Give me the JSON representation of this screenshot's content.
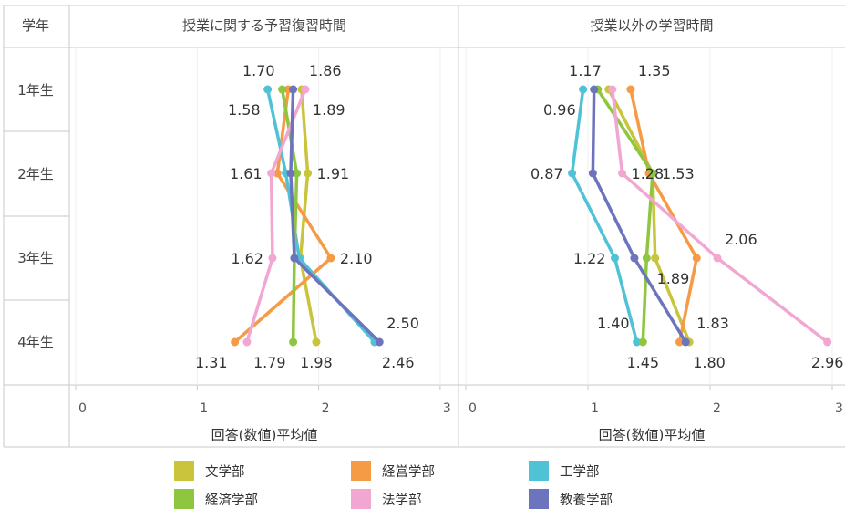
{
  "table": {
    "corner_label": "学年",
    "row_labels": [
      "1年生",
      "2年生",
      "3年生",
      "4年生"
    ]
  },
  "chart_data": [
    {
      "type": "line",
      "title": "授業に関する予習復習時間",
      "xlabel": "回答(数値)平均値",
      "xlim": [
        0,
        3
      ],
      "x_ticks": [
        "0",
        "1",
        "2",
        "3"
      ],
      "categories": [
        "1年生",
        "2年生",
        "3年生",
        "4年生"
      ],
      "grid": true,
      "series": [
        {
          "name": "文学部",
          "color": "#c9c43c",
          "values": [
            1.86,
            1.91,
            1.85,
            1.98
          ]
        },
        {
          "name": "経営学部",
          "color": "#f59a45",
          "values": [
            1.75,
            1.66,
            2.1,
            1.31
          ]
        },
        {
          "name": "工学部",
          "color": "#4fc2d6",
          "values": [
            1.58,
            1.73,
            1.84,
            2.46
          ]
        },
        {
          "name": "経済学部",
          "color": "#8ec63f",
          "values": [
            1.7,
            1.82,
            1.8,
            1.79
          ]
        },
        {
          "name": "法学部",
          "color": "#f2a7d3",
          "values": [
            1.89,
            1.61,
            1.62,
            1.41
          ]
        },
        {
          "name": "教養学部",
          "color": "#6c74bd",
          "values": [
            1.79,
            1.77,
            1.8,
            2.5
          ]
        }
      ],
      "labels": [
        {
          "text": "1.70",
          "x": 1.7,
          "row": 0,
          "pos": "above-left"
        },
        {
          "text": "1.86",
          "x": 1.86,
          "row": 0,
          "pos": "above-right"
        },
        {
          "text": "1.58",
          "x": 1.58,
          "row": 0,
          "pos": "below-left"
        },
        {
          "text": "1.89",
          "x": 1.89,
          "row": 0,
          "pos": "below-right"
        },
        {
          "text": "1.61",
          "x": 1.61,
          "row": 1,
          "pos": "left"
        },
        {
          "text": "1.91",
          "x": 1.91,
          "row": 1,
          "pos": "right"
        },
        {
          "text": "1.62",
          "x": 1.62,
          "row": 2,
          "pos": "left"
        },
        {
          "text": "2.10",
          "x": 2.1,
          "row": 2,
          "pos": "right"
        },
        {
          "text": "2.50",
          "x": 2.5,
          "row": 3,
          "pos": "above-right"
        },
        {
          "text": "1.31",
          "x": 1.31,
          "row": 3,
          "pos": "below-left"
        },
        {
          "text": "1.79",
          "x": 1.79,
          "row": 3,
          "pos": "below-left"
        },
        {
          "text": "1.98",
          "x": 1.98,
          "row": 3,
          "pos": "below"
        },
        {
          "text": "2.46",
          "x": 2.46,
          "row": 3,
          "pos": "below-right"
        }
      ]
    },
    {
      "type": "line",
      "title": "授業以外の学習時間",
      "xlabel": "回答(数値)平均値",
      "xlim": [
        0,
        3
      ],
      "x_ticks": [
        "0",
        "1",
        "2",
        "3"
      ],
      "categories": [
        "1年生",
        "2年生",
        "3年生",
        "4年生"
      ],
      "grid": true,
      "series": [
        {
          "name": "文学部",
          "color": "#c9c43c",
          "values": [
            1.17,
            1.53,
            1.55,
            1.83
          ]
        },
        {
          "name": "経営学部",
          "color": "#f59a45",
          "values": [
            1.35,
            1.5,
            1.89,
            1.75
          ]
        },
        {
          "name": "工学部",
          "color": "#4fc2d6",
          "values": [
            0.96,
            0.87,
            1.22,
            1.4
          ]
        },
        {
          "name": "経済学部",
          "color": "#8ec63f",
          "values": [
            1.08,
            1.53,
            1.48,
            1.45
          ]
        },
        {
          "name": "法学部",
          "color": "#f2a7d3",
          "values": [
            1.2,
            1.28,
            2.06,
            2.96
          ]
        },
        {
          "name": "教養学部",
          "color": "#6c74bd",
          "values": [
            1.05,
            1.04,
            1.38,
            1.8
          ]
        }
      ],
      "labels": [
        {
          "text": "1.17",
          "x": 1.17,
          "row": 0,
          "pos": "above-left"
        },
        {
          "text": "1.35",
          "x": 1.35,
          "row": 0,
          "pos": "above-right"
        },
        {
          "text": "0.96",
          "x": 0.96,
          "row": 0,
          "pos": "below-left"
        },
        {
          "text": "0.87",
          "x": 0.87,
          "row": 1,
          "pos": "left"
        },
        {
          "text": "1.28",
          "x": 1.28,
          "row": 1,
          "pos": "right"
        },
        {
          "text": "1.53",
          "x": 1.53,
          "row": 1,
          "pos": "right"
        },
        {
          "text": "2.06",
          "x": 2.06,
          "row": 2,
          "pos": "above-right"
        },
        {
          "text": "1.22",
          "x": 1.22,
          "row": 2,
          "pos": "left"
        },
        {
          "text": "1.89",
          "x": 1.89,
          "row": 2,
          "pos": "below-left"
        },
        {
          "text": "1.40",
          "x": 1.4,
          "row": 3,
          "pos": "above-left"
        },
        {
          "text": "1.83",
          "x": 1.83,
          "row": 3,
          "pos": "above-right"
        },
        {
          "text": "1.45",
          "x": 1.45,
          "row": 3,
          "pos": "below"
        },
        {
          "text": "1.80",
          "x": 1.8,
          "row": 3,
          "pos": "below-right"
        },
        {
          "text": "2.96",
          "x": 2.96,
          "row": 3,
          "pos": "below"
        }
      ]
    }
  ],
  "legend": [
    {
      "name": "文学部",
      "color": "#c9c43c"
    },
    {
      "name": "経営学部",
      "color": "#f59a45"
    },
    {
      "name": "工学部",
      "color": "#4fc2d6"
    },
    {
      "name": "経済学部",
      "color": "#8ec63f"
    },
    {
      "name": "法学部",
      "color": "#f2a7d3"
    },
    {
      "name": "教養学部",
      "color": "#6c74bd"
    }
  ]
}
